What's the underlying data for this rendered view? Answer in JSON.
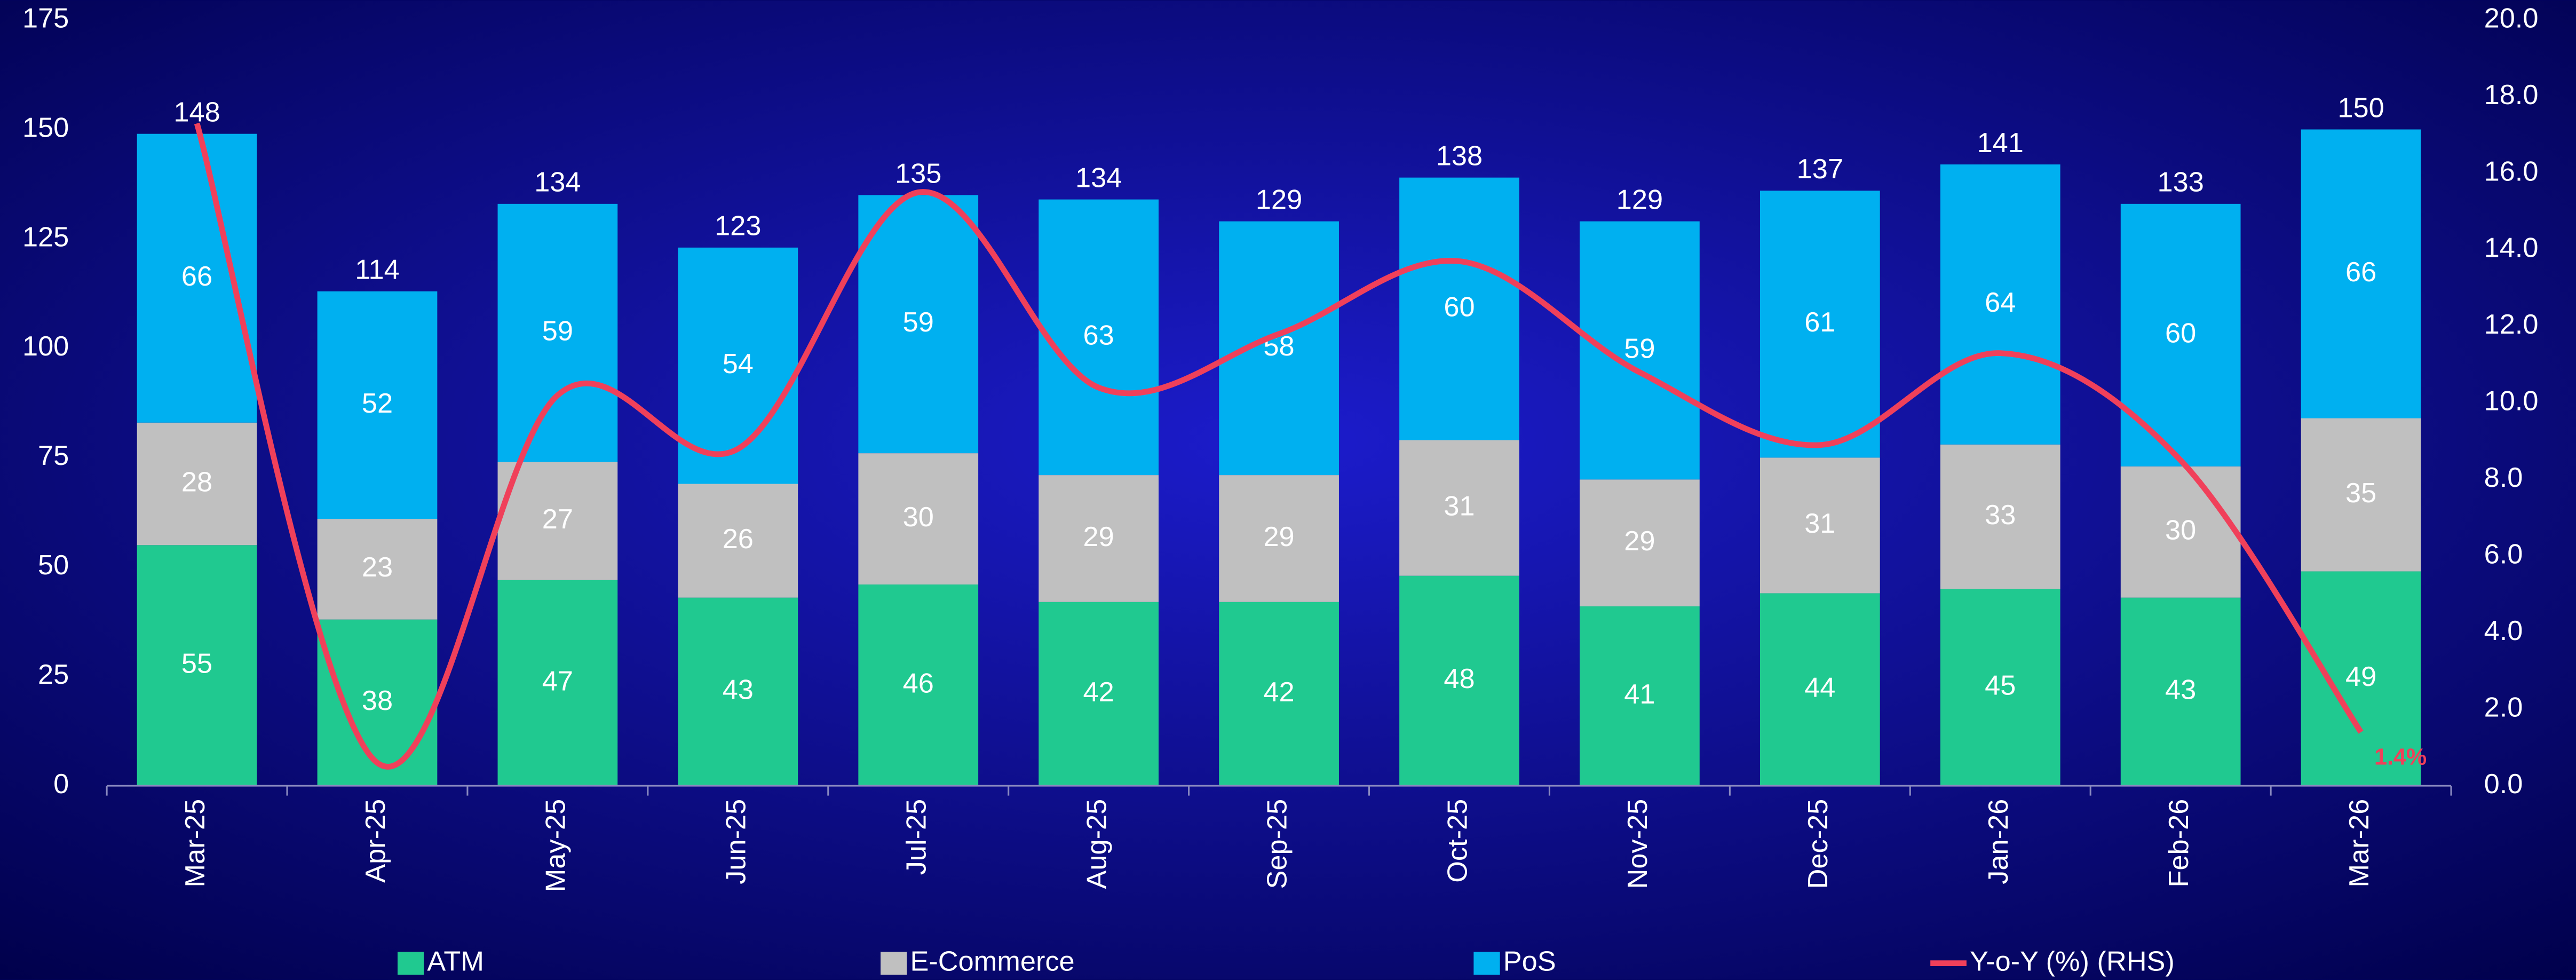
{
  "chart_data": {
    "type": "bar",
    "stacked": true,
    "categories": [
      "Mar-25",
      "Apr-25",
      "May-25",
      "Jun-25",
      "Jul-25",
      "Aug-25",
      "Sep-25",
      "Oct-25",
      "Nov-25",
      "Dec-25",
      "Jan-26",
      "Feb-26",
      "Mar-26"
    ],
    "series": [
      {
        "name": "ATM",
        "color": "#20c990",
        "values": [
          55,
          38,
          47,
          43,
          46,
          42,
          42,
          48,
          41,
          44,
          45,
          43,
          49
        ]
      },
      {
        "name": "E-Commerce",
        "color": "#c0c0c0",
        "values": [
          28,
          23,
          27,
          26,
          30,
          29,
          29,
          31,
          29,
          31,
          33,
          30,
          35
        ]
      },
      {
        "name": "PoS",
        "color": "#00b0f0",
        "values": [
          66,
          52,
          59,
          54,
          59,
          63,
          58,
          60,
          59,
          61,
          64,
          60,
          66
        ]
      },
      {
        "name": "Y-o-Y (%) (RHS)",
        "color": "#f0405a",
        "type": "line",
        "axis": "y2",
        "values": [
          17.3,
          0.6,
          10.2,
          8.8,
          15.5,
          10.4,
          11.8,
          13.7,
          10.8,
          8.9,
          11.3,
          8.5,
          1.4
        ],
        "value_labels": [
          null,
          null,
          null,
          null,
          null,
          null,
          null,
          null,
          null,
          null,
          null,
          null,
          "1.4%"
        ]
      }
    ],
    "totals": [
      148,
      114,
      134,
      123,
      135,
      134,
      129,
      138,
      129,
      137,
      141,
      133,
      150
    ],
    "ylim": [
      0,
      175
    ],
    "yticks": [
      0,
      25,
      50,
      75,
      100,
      125,
      150,
      175
    ],
    "y2lim": [
      0,
      20
    ],
    "y2ticks": [
      {
        "value": 0,
        "label": "0.0"
      },
      {
        "value": 2,
        "label": "2.0"
      },
      {
        "value": 4,
        "label": "4.0"
      },
      {
        "value": 6,
        "label": "6.0"
      },
      {
        "value": 8,
        "label": "8.0"
      },
      {
        "value": 10,
        "label": "10.0"
      },
      {
        "value": 12,
        "label": "12.0"
      },
      {
        "value": 14,
        "label": "14.0"
      },
      {
        "value": 16,
        "label": "16.0"
      },
      {
        "value": 18,
        "label": "18.0"
      },
      {
        "value": 20,
        "label": "20.0"
      }
    ],
    "legend": "bottom"
  }
}
